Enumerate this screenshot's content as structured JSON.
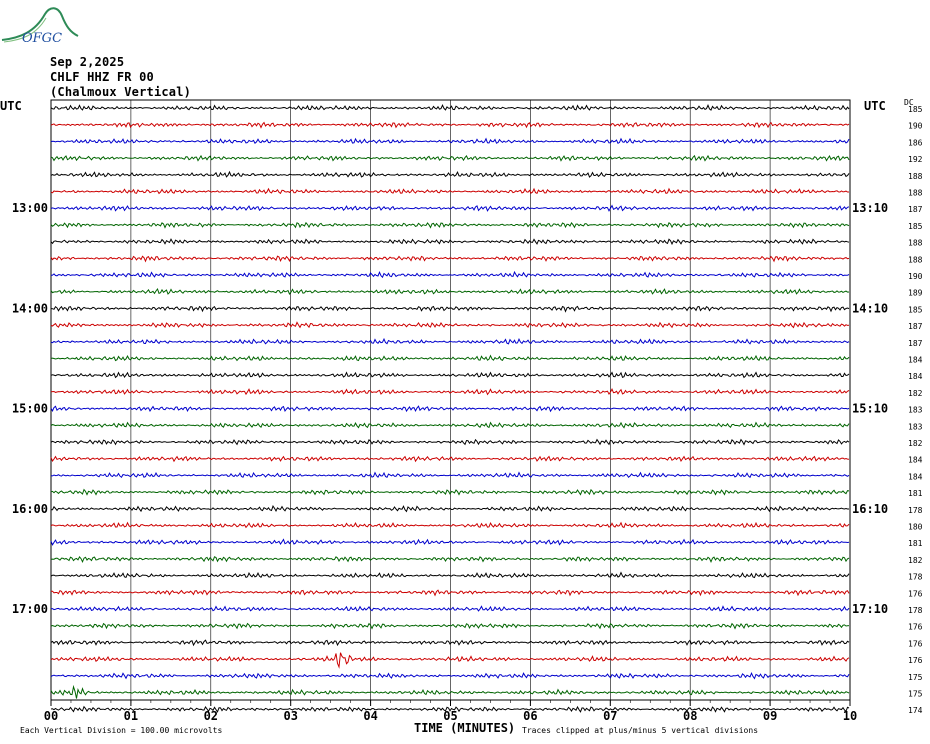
{
  "logo": {
    "text": "OFGC",
    "color": "#2e8b57"
  },
  "header": {
    "date": "Sep 2,2025",
    "station": "CHLF HHZ FR 00",
    "location": "(Chalmoux Vertical)"
  },
  "footer": {
    "scale_note": "Each Vertical Division =  100.00 microvolts",
    "xlabel": "TIME (MINUTES)",
    "clip_note": "Traces clipped at plus/minus 5 vertical divisions"
  },
  "chart_data": {
    "type": "line",
    "title": "",
    "left_axis_title": "UTC",
    "right_axis_title": "UTC",
    "right_column_title": "DC",
    "xlabel": "TIME (MINUTES)",
    "xlim": [
      0,
      10
    ],
    "x_ticks": [
      "00",
      "01",
      "02",
      "03",
      "04",
      "05",
      "06",
      "07",
      "08",
      "09",
      "10"
    ],
    "grid": true,
    "trace_colors": [
      "#000000",
      "#cc0000",
      "#0000cc",
      "#006400"
    ],
    "left_time_labels": [
      {
        "trace": 6,
        "label": "13:00"
      },
      {
        "trace": 12,
        "label": "14:00"
      },
      {
        "trace": 18,
        "label": "15:00"
      },
      {
        "trace": 24,
        "label": "16:00"
      },
      {
        "trace": 30,
        "label": "17:00"
      }
    ],
    "right_time_labels": [
      {
        "trace": 6,
        "label": "13:10"
      },
      {
        "trace": 12,
        "label": "14:10"
      },
      {
        "trace": 18,
        "label": "15:10"
      },
      {
        "trace": 24,
        "label": "16:10"
      },
      {
        "trace": 30,
        "label": "17:10"
      }
    ],
    "dc_offsets": [
      "185",
      "190",
      "186",
      "192",
      "188",
      "188",
      "187",
      "185",
      "188",
      "188",
      "190",
      "189",
      "185",
      "187",
      "187",
      "184",
      "184",
      "182",
      "183",
      "183",
      "182",
      "184",
      "184",
      "181",
      "178",
      "180",
      "181",
      "182",
      "178",
      "176",
      "178",
      "176",
      "176",
      "176",
      "175",
      "175",
      "174"
    ],
    "events": [
      {
        "trace": 33,
        "minute": 3.65,
        "description": "burst"
      },
      {
        "trace": 35,
        "minute": 0.35,
        "description": "burst"
      }
    ]
  }
}
